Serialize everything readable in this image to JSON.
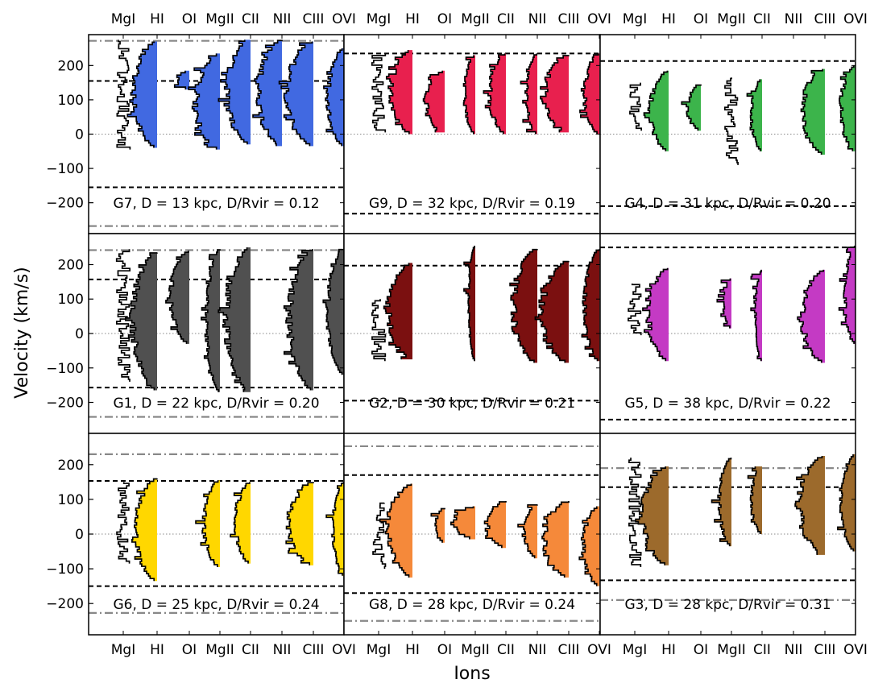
{
  "figure": {
    "ylabel": "Velocity (km/s)",
    "xlabel": "Ions"
  },
  "chart_data": {
    "type": "velocity-histogram-grid",
    "ions": [
      "MgI",
      "HI",
      "OI",
      "MgII",
      "CII",
      "NII",
      "CIII",
      "OVI"
    ],
    "ylim": [
      -290,
      290
    ],
    "yticks": [
      200,
      100,
      0,
      -100,
      -200
    ],
    "ytick_labels": [
      "200",
      "100",
      "0",
      "−100",
      "−200"
    ],
    "zero_line": "dotted",
    "panels": [
      {
        "label": "G7, D = 13 kpc, D/Rvir = 0.12",
        "color": "#4169E1",
        "dashed": [
          155,
          -155
        ],
        "dashdot": [
          272,
          -268
        ],
        "ions": {
          "MgI": {
            "range": [
              -45,
              275
            ],
            "peak": 0.1,
            "fill": false
          },
          "HI": {
            "range": [
              -40,
              270
            ],
            "peak": 0.9,
            "fill": true
          },
          "OI": {
            "range": [
              130,
              185
            ],
            "peak": 0.4,
            "fill": true
          },
          "MgII": {
            "range": [
              -45,
              235
            ],
            "peak": 0.9,
            "fill": true
          },
          "CII": {
            "range": [
              -30,
              275
            ],
            "peak": 0.9,
            "fill": true
          },
          "NII": {
            "range": [
              -35,
              275
            ],
            "peak": 0.9,
            "fill": true
          },
          "CIII": {
            "range": [
              -35,
              270
            ],
            "peak": 1.0,
            "fill": true
          },
          "OVI": {
            "range": [
              -35,
              250
            ],
            "peak": 0.6,
            "fill": true
          }
        }
      },
      {
        "label": "G9, D = 32 kpc, D/Rvir = 0.19",
        "color": "#E8204E",
        "dashed": [
          235,
          -232
        ],
        "dashdot": [],
        "ions": {
          "MgI": {
            "range": [
              5,
              235
            ],
            "peak": 0.1,
            "fill": false
          },
          "HI": {
            "range": [
              0,
              245
            ],
            "peak": 0.8,
            "fill": true
          },
          "OI": {
            "range": [
              5,
              185
            ],
            "peak": 0.7,
            "fill": true
          },
          "MgII": {
            "range": [
              0,
              230
            ],
            "peak": 0.4,
            "fill": true
          },
          "CII": {
            "range": [
              0,
              235
            ],
            "peak": 0.6,
            "fill": true
          },
          "NII": {
            "range": [
              0,
              235
            ],
            "peak": 0.4,
            "fill": true
          },
          "CIII": {
            "range": [
              5,
              230
            ],
            "peak": 0.9,
            "fill": true
          },
          "OVI": {
            "range": [
              0,
              235
            ],
            "peak": 0.55,
            "fill": true
          }
        }
      },
      {
        "label": "G4, D = 31 kpc, D/Rvir = 0.20",
        "color": "#3CB44B",
        "dashed": [
          213,
          -210
        ],
        "dashdot": [],
        "ions": {
          "MgI": {
            "range": [
              10,
              150
            ],
            "peak": 0.1,
            "fill": false
          },
          "HI": {
            "range": [
              -50,
              185
            ],
            "peak": 0.7,
            "fill": true
          },
          "OI": {
            "range": [
              10,
              145
            ],
            "peak": 0.5,
            "fill": true
          },
          "MgII": {
            "range": [
              -90,
              165
            ],
            "peak": 0.2,
            "fill": false
          },
          "CII": {
            "range": [
              -50,
              160
            ],
            "peak": 0.4,
            "fill": true
          },
          "NII": null,
          "CIII": {
            "range": [
              -60,
              190
            ],
            "peak": 0.85,
            "fill": true
          },
          "OVI": {
            "range": [
              -50,
              200
            ],
            "peak": 0.55,
            "fill": true
          }
        }
      },
      {
        "label": "G1, D = 22 kpc, D/Rvir = 0.20",
        "color": "#505050",
        "dashed": [
          157,
          -157
        ],
        "dashdot": [
          242,
          -242
        ],
        "ions": {
          "MgI": {
            "range": [
              -140,
              245
            ],
            "peak": 0.1,
            "fill": false
          },
          "HI": {
            "range": [
              -165,
              235
            ],
            "peak": 0.9,
            "fill": true
          },
          "OI": {
            "range": [
              -30,
              240
            ],
            "peak": 0.7,
            "fill": true
          },
          "MgII": {
            "range": [
              -170,
              245
            ],
            "peak": 0.5,
            "fill": true
          },
          "CII": {
            "range": [
              -170,
              250
            ],
            "peak": 0.9,
            "fill": true
          },
          "NII": null,
          "CIII": {
            "range": [
              -165,
              245
            ],
            "peak": 0.9,
            "fill": true
          },
          "OVI": {
            "range": [
              -120,
              245
            ],
            "peak": 0.6,
            "fill": true
          }
        }
      },
      {
        "label": "G2, D = 30 kpc, D/Rvir = 0.21",
        "color": "#7B1010",
        "dashed": [
          197,
          -195
        ],
        "dashdot": [],
        "ions": {
          "MgI": {
            "range": [
              -80,
              100
            ],
            "peak": 0.1,
            "fill": false
          },
          "HI": {
            "range": [
              -75,
              205
            ],
            "peak": 0.9,
            "fill": true
          },
          "OI": null,
          "MgII": {
            "range": [
              -80,
              255
            ],
            "peak": 0.25,
            "fill": true
          },
          "CII": null,
          "NII": {
            "range": [
              -85,
              245
            ],
            "peak": 0.9,
            "fill": true
          },
          "CIII": {
            "range": [
              -85,
              210
            ],
            "peak": 1.0,
            "fill": true
          },
          "OVI": {
            "range": [
              -80,
              245
            ],
            "peak": 0.55,
            "fill": true
          }
        }
      },
      {
        "label": "G5, D = 38 kpc, D/Rvir = 0.22",
        "color": "#C43AC4",
        "dashed": [
          250,
          -250
        ],
        "dashdot": [],
        "ions": {
          "MgI": {
            "range": [
              -5,
              145
            ],
            "peak": 0.1,
            "fill": false
          },
          "HI": {
            "range": [
              -80,
              190
            ],
            "peak": 0.75,
            "fill": true
          },
          "OI": null,
          "MgII": {
            "range": [
              15,
              160
            ],
            "peak": 0.3,
            "fill": true
          },
          "CII": {
            "range": [
              -80,
              185
            ],
            "peak": 0.25,
            "fill": true
          },
          "NII": null,
          "CIII": {
            "range": [
              -85,
              185
            ],
            "peak": 0.85,
            "fill": true
          },
          "OVI": {
            "range": [
              -30,
              255
            ],
            "peak": 0.4,
            "fill": true
          }
        }
      },
      {
        "label": "G6, D = 25 kpc, D/Rvir = 0.24",
        "color": "#FFD700",
        "dashed": [
          153,
          -150
        ],
        "dashdot": [
          230,
          -227
        ],
        "ions": {
          "MgI": {
            "range": [
              -85,
              150
            ],
            "peak": 0.1,
            "fill": false
          },
          "HI": {
            "range": [
              -135,
              160
            ],
            "peak": 0.8,
            "fill": true
          },
          "OI": null,
          "MgII": {
            "range": [
              -95,
              155
            ],
            "peak": 0.6,
            "fill": true
          },
          "CII": {
            "range": [
              -85,
              150
            ],
            "peak": 0.55,
            "fill": true
          },
          "NII": null,
          "CIII": {
            "range": [
              -90,
              150
            ],
            "peak": 0.9,
            "fill": true
          },
          "OVI": {
            "range": [
              -120,
              150
            ],
            "peak": 0.4,
            "fill": true
          }
        }
      },
      {
        "label": "G8, D = 28 kpc, D/Rvir = 0.24",
        "color": "#F5893A",
        "dashed": [
          170,
          -170
        ],
        "dashdot": [
          253,
          -250
        ],
        "ions": {
          "MgI": {
            "range": [
              -100,
              90
            ],
            "peak": 0.15,
            "fill": false
          },
          "HI": {
            "range": [
              -125,
              145
            ],
            "peak": 0.9,
            "fill": true
          },
          "OI": {
            "range": [
              -25,
              75
            ],
            "peak": 0.35,
            "fill": true
          },
          "MgII": {
            "range": [
              -15,
              80
            ],
            "peak": 0.8,
            "fill": true
          },
          "CII": {
            "range": [
              -40,
              95
            ],
            "peak": 0.7,
            "fill": true
          },
          "NII": {
            "range": [
              -70,
              85
            ],
            "peak": 0.5,
            "fill": true
          },
          "CIII": {
            "range": [
              -125,
              95
            ],
            "peak": 0.95,
            "fill": true
          },
          "OVI": {
            "range": [
              -150,
              80
            ],
            "peak": 0.6,
            "fill": true
          }
        }
      },
      {
        "label": "G3, D = 28 kpc, D/Rvir = 0.31",
        "color": "#9C6A2C",
        "dashed": [
          135,
          -133
        ],
        "dashdot": [
          190,
          -190
        ],
        "ions": {
          "MgI": {
            "range": [
              -95,
              220
            ],
            "peak": 0.1,
            "fill": false
          },
          "HI": {
            "range": [
              -90,
              195
            ],
            "peak": 1.0,
            "fill": true
          },
          "OI": null,
          "MgII": {
            "range": [
              -35,
              220
            ],
            "peak": 0.45,
            "fill": true
          },
          "CII": {
            "range": [
              0,
              195
            ],
            "peak": 0.4,
            "fill": true
          },
          "NII": null,
          "CIII": {
            "range": [
              -60,
              225
            ],
            "peak": 0.95,
            "fill": true
          },
          "OVI": {
            "range": [
              -50,
              230
            ],
            "peak": 0.55,
            "fill": true
          }
        }
      }
    ]
  }
}
